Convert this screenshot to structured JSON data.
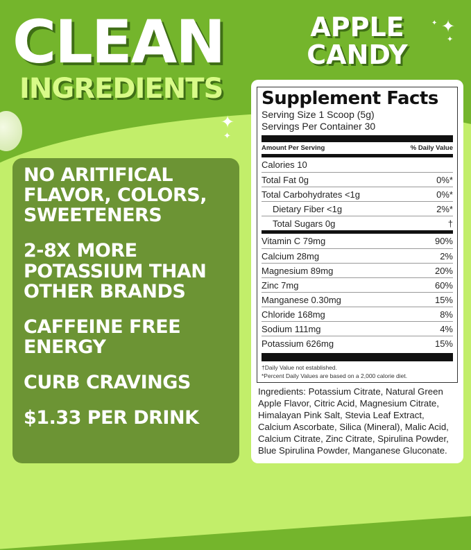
{
  "headline": {
    "line1": "CLEAN",
    "line2": "INGREDIENTS",
    "flavor_line1": "APPLE",
    "flavor_line2": "CANDY"
  },
  "claims": [
    "NO ARITIFICAL FLAVOR, COLORS, SWEETENERS",
    "2-8X MORE POTASSIUM THAN OTHER BRANDS",
    "CAFFEINE FREE ENERGY",
    "CURB CRAVINGS",
    "$1.33 PER DRINK"
  ],
  "facts": {
    "title": "Supplement Facts",
    "serving_size": "Serving Size 1 Scoop (5g)",
    "servings_per_container": "Servings Per Container 30",
    "amount_header": "Amount Per Serving",
    "dv_header": "% Daily Value",
    "macros": [
      {
        "name": "Calories 10",
        "dv": ""
      },
      {
        "name": "Total Fat 0g",
        "dv": "0%*"
      },
      {
        "name": "Total Carbohydrates <1g",
        "dv": "0%*"
      },
      {
        "name": "Dietary Fiber <1g",
        "dv": "2%*",
        "indent": true
      },
      {
        "name": "Total Sugars 0g",
        "dv": "†",
        "indent": true
      }
    ],
    "minerals": [
      {
        "name": "Vitamin C 79mg",
        "dv": "90%"
      },
      {
        "name": "Calcium 28mg",
        "dv": "2%"
      },
      {
        "name": "Magnesium 89mg",
        "dv": "20%"
      },
      {
        "name": "Zinc 7mg",
        "dv": "60%"
      },
      {
        "name": "Manganese 0.30mg",
        "dv": "15%"
      },
      {
        "name": "Chloride 168mg",
        "dv": "8%"
      },
      {
        "name": "Sodium 111mg",
        "dv": "4%"
      },
      {
        "name": "Potassium 626mg",
        "dv": "15%"
      }
    ],
    "footnote1": "†Daily Value not established.",
    "footnote2": "*Percent Daily Values are based on a 2,000 calorie diet.",
    "ingredients": "Ingredients: Potassium Citrate, Natural Green Apple Flavor, Citric Acid, Magnesium Citrate, Himalayan Pink Salt, Stevia Leaf Extract, Calcium Ascorbate, Silica (Mineral), Malic Acid, Calcium Citrate, Zinc Citrate, Spirulina Powder, Blue Spirulina Powder, Manganese Gluconate."
  },
  "colors": {
    "background": "#74b52c",
    "wave": "#c2ee6a",
    "panel": "#6c9434",
    "accent_text": "#d8fa88"
  }
}
